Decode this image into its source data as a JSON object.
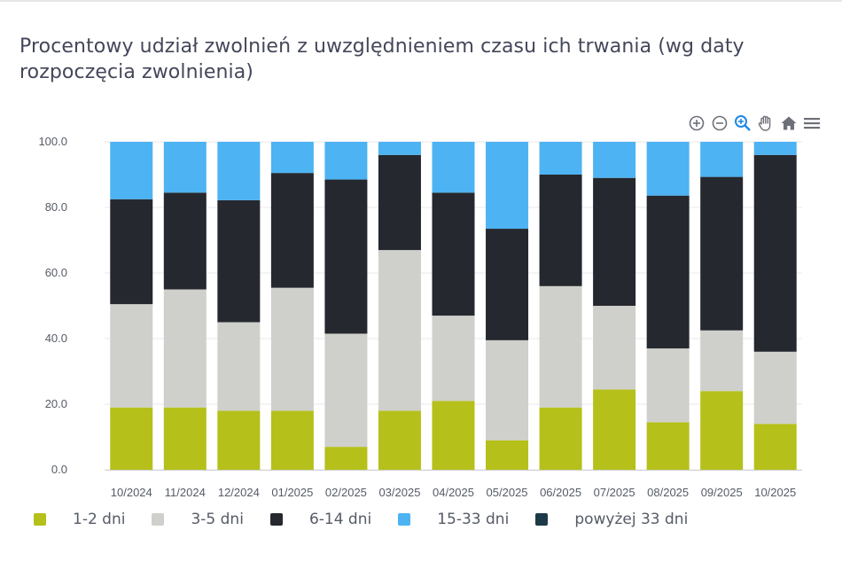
{
  "chart_data": {
    "type": "bar",
    "stacked": true,
    "title": "Procentowy udział zwolnień z uwzględnieniem czasu ich trwania (wg daty rozpoczęcia zwolnienia)",
    "xlabel": "",
    "ylabel": "",
    "ylim": [
      0,
      100
    ],
    "yticks": [
      "0.0",
      "20.0",
      "40.0",
      "60.0",
      "80.0",
      "100.0"
    ],
    "grid": true,
    "legend_position": "bottom-left",
    "categories": [
      "10/2024",
      "11/2024",
      "12/2024",
      "01/2025",
      "02/2025",
      "03/2025",
      "04/2025",
      "05/2025",
      "06/2025",
      "07/2025",
      "08/2025",
      "09/2025",
      "10/2025"
    ],
    "series": [
      {
        "name": "1-2 dni",
        "color": "#b5c01a",
        "values": [
          19,
          19,
          18,
          18,
          7,
          18,
          21,
          9,
          19,
          24.5,
          14.5,
          24,
          14
        ]
      },
      {
        "name": "3-5 dni",
        "color": "#cfd0cb",
        "values": [
          31.5,
          36,
          27,
          37.5,
          34.5,
          49,
          26,
          30.5,
          37,
          25.5,
          22.5,
          18.5,
          22
        ]
      },
      {
        "name": "6-14 dni",
        "color": "#25282e",
        "values": [
          32,
          29.5,
          37.2,
          35,
          47,
          29,
          37.5,
          34,
          34,
          39,
          46.6,
          46.8,
          60
        ]
      },
      {
        "name": "15-33 dni",
        "color": "#4db3f2",
        "values": [
          17.5,
          15.5,
          17.8,
          9.5,
          11.5,
          4,
          15.5,
          26.5,
          10,
          11,
          16.4,
          10.7,
          4
        ]
      },
      {
        "name": "powyżej 33 dni",
        "color": "#1e3a48",
        "values": [
          0,
          0,
          0,
          0,
          0,
          0,
          0,
          0,
          0,
          0,
          0,
          0,
          0
        ]
      }
    ]
  },
  "toolbar": {
    "icons": [
      "zoom-in-icon",
      "zoom-out-icon",
      "selection-zoom-icon",
      "pan-hand-icon",
      "home-reset-icon",
      "menu-icon"
    ],
    "accent_color": "#1e88e5",
    "icon_color": "#6e7079"
  }
}
